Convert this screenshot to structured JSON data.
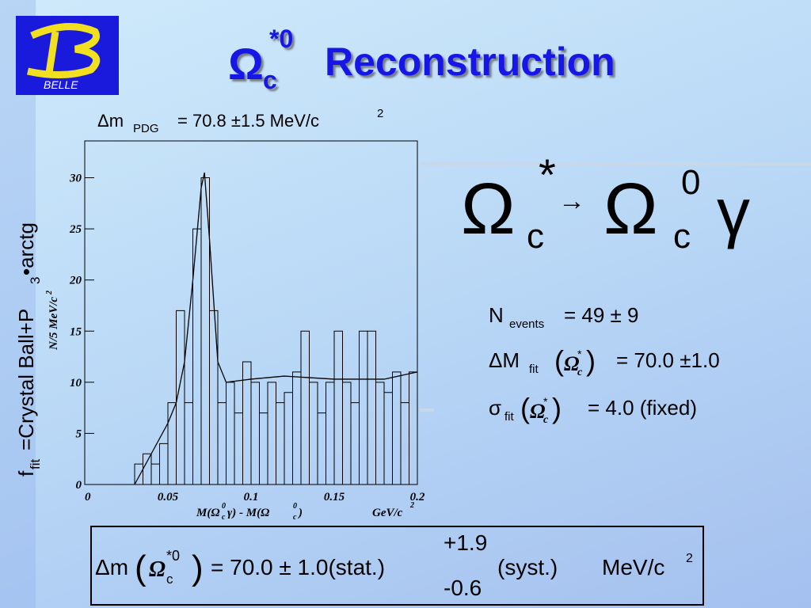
{
  "logo": "BELLE",
  "title": {
    "omega": "Ω",
    "sub": "c",
    "sup": "*0",
    "text": "Reconstruction"
  },
  "pdg": {
    "dm": "Δm",
    "sub": "PDG",
    "text": "= 70.8 ±1.5 MeV/c",
    "sup": "2"
  },
  "decay": {
    "omega1": "Ω",
    "sub1": "c",
    "sup1": "*",
    "arrow": "→",
    "omega2": "Ω",
    "sub2": "c",
    "sup2": "0",
    "gamma": "γ"
  },
  "results": {
    "n": "N",
    "n_sub": "events",
    "n_text": "= 49 ± 9",
    "dm": "ΔM",
    "dm_sub": "fit",
    "dm_open": "(",
    "dm_omega": "Ω",
    "dm_omega_sub": "c",
    "dm_omega_sup": "*",
    "dm_close": ")",
    "dm_text": "= 70.0 ±1.0",
    "sigma": "σ",
    "sigma_sub": "fit",
    "sigma_open": "(",
    "sigma_omega": "Ω",
    "sigma_omega_sub": "c",
    "sigma_omega_sup": "*",
    "sigma_close": ")",
    "sigma_text": "= 4.0 (fixed)"
  },
  "fit_function": {
    "f": "f",
    "sub": "fit",
    "text": "=Crystal Ball+P",
    "p_sub": "3",
    "tail": "•arctg"
  },
  "result_box": {
    "dm": "Δm",
    "open": "(",
    "omega": "Ω",
    "omega_sub": "c",
    "omega_sup": "*0",
    "close": ")",
    "stat": "= 70.0 ± 1.0(stat.)",
    "syst_up": "+1.9",
    "syst_down": "-0.6",
    "syst": "(syst.)",
    "unit": "MeV/c",
    "unit_sup": "2"
  },
  "chart_data": {
    "type": "histogram",
    "x_label": {
      "a": "M(Ω",
      "a_sub": "c",
      "a_sup": "0",
      "b": "γ) - M(Ω",
      "b_sub": "c",
      "b_sup": "0",
      "c": ")"
    },
    "x_unit": {
      "text": "GeV/c",
      "sup": "2"
    },
    "y_label": {
      "text": "N/5 MeV/c",
      "sup": "2"
    },
    "bins": [
      0,
      0.005,
      0.01,
      0.015,
      0.02,
      0.025,
      0.03,
      0.035,
      0.04,
      0.045,
      0.05,
      0.055,
      0.06,
      0.065,
      0.07,
      0.075,
      0.08,
      0.085,
      0.09,
      0.095,
      0.1,
      0.105,
      0.11,
      0.115,
      0.12,
      0.125,
      0.13,
      0.135,
      0.14,
      0.145,
      0.15,
      0.155,
      0.16,
      0.165,
      0.17,
      0.175,
      0.18,
      0.185,
      0.19,
      0.195,
      0.2
    ],
    "values": [
      0,
      0,
      0,
      0,
      0,
      0,
      2,
      3,
      2,
      4,
      8,
      17,
      8,
      25,
      30,
      17,
      8,
      10,
      7,
      12,
      10,
      7,
      10,
      8,
      9,
      11,
      15,
      10,
      7,
      10,
      15,
      10,
      8,
      15,
      15,
      10,
      9,
      11,
      8,
      11
    ],
    "color": "#000000",
    "fit": {
      "x": [
        0.03,
        0.04,
        0.05,
        0.055,
        0.06,
        0.065,
        0.07,
        0.072,
        0.075,
        0.08,
        0.085,
        0.1,
        0.12,
        0.15,
        0.18,
        0.2
      ],
      "values": [
        0,
        3,
        6,
        8,
        12,
        20,
        29,
        30.5,
        24,
        12,
        10,
        10.3,
        10.6,
        10.3,
        10.3,
        11
      ]
    },
    "xlim": [
      0,
      0.2
    ],
    "xticks": [
      0,
      0.05,
      0.1,
      0.15,
      0.2
    ],
    "ylim": [
      0,
      33.6
    ],
    "yticks": [
      0,
      5,
      10,
      15,
      20,
      25,
      30
    ]
  }
}
